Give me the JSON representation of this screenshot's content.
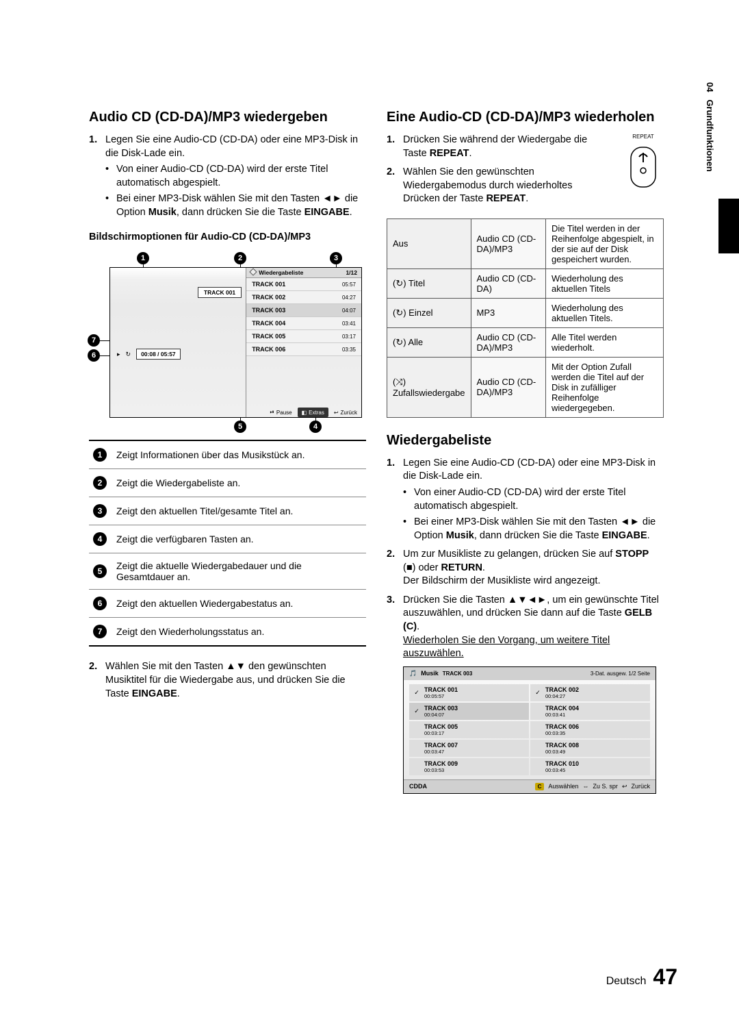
{
  "side": {
    "chapter": "04",
    "label": "Grundfunktionen"
  },
  "left": {
    "h2": "Audio CD (CD-DA)/MP3 wiedergeben",
    "step1": "Legen Sie eine Audio-CD (CD-DA) oder eine MP3-Disk in die Disk-Lade ein.",
    "step1_b1a": "Von einer Audio-CD (CD-DA) wird der erste Titel automatisch abgespielt.",
    "step1_b2a": "Bei einer MP3-Disk wählen Sie mit den Tasten ◄► die Option ",
    "step1_b2_bold1": "Musik",
    "step1_b2b": ", dann drücken Sie die Taste ",
    "step1_b2_bold2": "EINGABE",
    "step1_b2c": ".",
    "subhead": "Bildschirmoptionen für Audio-CD (CD-DA)/MP3",
    "player": {
      "wlist_title": "Wiedergabeliste",
      "counter": "1/12",
      "current_track_box": "TRACK 001",
      "time_box": "00:08 / 05:57",
      "tracks": [
        {
          "name": "TRACK 001",
          "dur": "05:57",
          "shade": "light"
        },
        {
          "name": "TRACK 002",
          "dur": "04:27",
          "shade": "light"
        },
        {
          "name": "TRACK 003",
          "dur": "04:07",
          "shade": "dark"
        },
        {
          "name": "TRACK 004",
          "dur": "03:41",
          "shade": "light"
        },
        {
          "name": "TRACK 005",
          "dur": "03:17",
          "shade": "light"
        },
        {
          "name": "TRACK 006",
          "dur": "03:35",
          "shade": "light"
        }
      ],
      "btn_pause": "Pause",
      "btn_extras": "Extras",
      "btn_back": "Zurück"
    },
    "legend": [
      "Zeigt Informationen über das Musikstück an.",
      "Zeigt die Wiedergabeliste an.",
      "Zeigt den aktuellen Titel/gesamte Titel an.",
      "Zeigt die verfügbaren Tasten an.",
      "Zeigt die aktuelle Wiedergabedauer und die Gesamtdauer an.",
      "Zeigt den aktuellen Wiedergabestatus an.",
      "Zeigt den Wiederholungsstatus an."
    ],
    "step2a": "Wählen Sie mit den Tasten ▲▼ den gewünschten Musiktitel für die Wiedergabe aus, und drücken Sie die Taste ",
    "step2_bold": "EINGABE",
    "step2b": "."
  },
  "right": {
    "h2": "Eine Audio-CD (CD-DA)/MP3 wiederholen",
    "step1a": "Drücken Sie während der Wiedergabe die Taste ",
    "step1_bold": "REPEAT",
    "step1b": ".",
    "step2a": "Wählen Sie den gewünschten Wiedergabemodus durch wiederholtes Drücken der Taste ",
    "step2_bold": "REPEAT",
    "step2b": ".",
    "remote_label": "REPEAT",
    "table": {
      "rows": [
        {
          "c1": "Aus",
          "c2": "Audio CD (CD-DA)/MP3",
          "c3": "Die Titel werden in der Reihenfolge abgespielt, in der sie auf der Disk gespeichert wurden."
        },
        {
          "c1": "(↻) Titel",
          "c2": "Audio CD (CD-DA)",
          "c3": "Wiederholung des aktuellen Titels"
        },
        {
          "c1": "(↻) Einzel",
          "c2": "MP3",
          "c3": "Wiederholung des aktuellen Titels."
        },
        {
          "c1": "(↻) Alle",
          "c2": "Audio CD (CD-DA)/MP3",
          "c3": "Alle Titel werden wiederholt."
        },
        {
          "c1": "(⤨) Zufallswiedergabe",
          "c2": "Audio CD (CD-DA)/MP3",
          "c3": "Mit der Option Zufall werden die Titel auf der Disk in zufälliger Reihenfolge wiedergegeben."
        }
      ]
    },
    "h2b": "Wiedergabeliste",
    "b_step1": "Legen Sie eine Audio-CD (CD-DA) oder eine MP3-Disk in die Disk-Lade ein.",
    "b_step1_b1": "Von einer Audio-CD (CD-DA) wird der erste Titel automatisch abgespielt.",
    "b_step1_b2a": "Bei einer MP3-Disk wählen Sie mit den Tasten ◄► die Option ",
    "b_step1_b2_bold1": "Musik",
    "b_step1_b2b": ", dann drücken Sie die Taste ",
    "b_step1_b2_bold2": "EINGABE",
    "b_step1_b2c": ".",
    "b_step2a": "Um zur Musikliste zu gelangen, drücken Sie auf ",
    "b_step2_bold1": "STOPP",
    "b_step2b": " (■) oder ",
    "b_step2_bold2": "RETURN",
    "b_step2c": ".",
    "b_step2_line2": "Der Bildschirm der Musikliste wird angezeigt.",
    "b_step3a": "Drücken Sie die Tasten ▲▼◄►, um ein gewünschte Titel auszuwählen, und drücken Sie dann auf die Taste ",
    "b_step3_bold": "GELB (C)",
    "b_step3b": ".",
    "b_step3_line2": "Wiederholen Sie den Vorgang, um weitere Titel auszuwählen.",
    "mlist": {
      "head_left_icon": "🎵",
      "head_left_label": "Musik",
      "head_left_track": "TRACK 003",
      "head_right": "3-Dat. ausgew.   1/2 Seite",
      "tracks": [
        {
          "n": "TRACK 001",
          "d": "00:05:57",
          "chk": true
        },
        {
          "n": "TRACK 002",
          "d": "00:04:27",
          "chk": true
        },
        {
          "n": "TRACK 003",
          "d": "00:04:07",
          "chk": true,
          "sel": true
        },
        {
          "n": "TRACK 004",
          "d": "00:03:41",
          "chk": false
        },
        {
          "n": "TRACK 005",
          "d": "00:03:17",
          "chk": false
        },
        {
          "n": "TRACK 006",
          "d": "00:03:35",
          "chk": false
        },
        {
          "n": "TRACK 007",
          "d": "00:03:47",
          "chk": false
        },
        {
          "n": "TRACK 008",
          "d": "00:03:49",
          "chk": false
        },
        {
          "n": "TRACK 009",
          "d": "00:03:53",
          "chk": false
        },
        {
          "n": "TRACK 010",
          "d": "00:03:45",
          "chk": false
        }
      ],
      "foot_left": "CDDA",
      "foot_c": "C",
      "foot_sel": "Auswählen",
      "foot_jump": "Zu S. spr",
      "foot_back": "Zurück"
    }
  },
  "footer": {
    "lang": "Deutsch",
    "page": "47"
  }
}
